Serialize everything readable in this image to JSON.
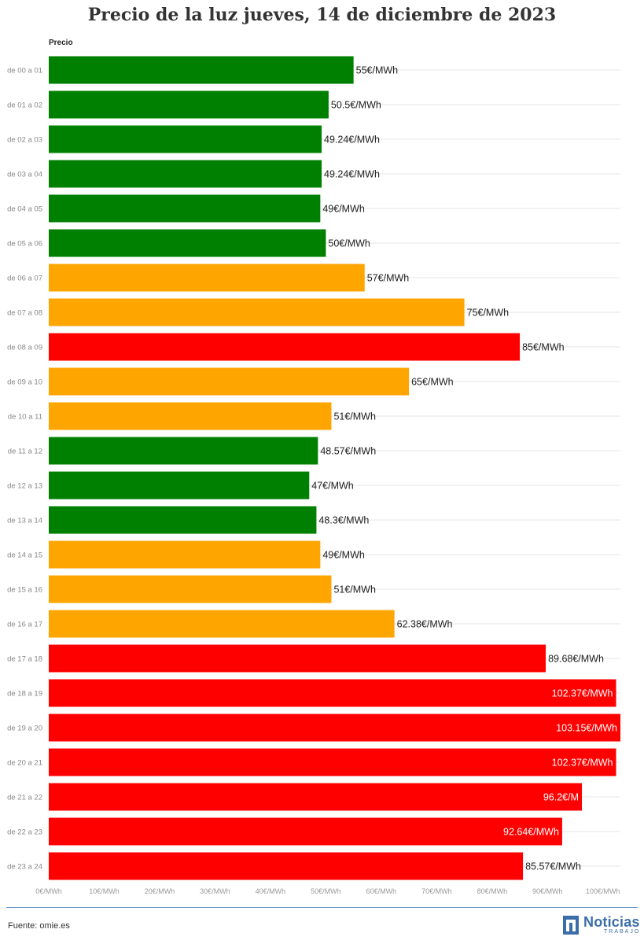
{
  "chart_data": {
    "type": "bar",
    "orientation": "horizontal",
    "title": "Precio de la luz jueves, 14 de diciembre de 2023",
    "ylabel": "Precio",
    "categories": [
      "de 00 a 01",
      "de 01 a 02",
      "de 02 a 03",
      "de 03 a 04",
      "de 04 a 05",
      "de 05 a 06",
      "de 06 a 07",
      "de 07 a 08",
      "de 08 a 09",
      "de 09 a 10",
      "de 10 a 11",
      "de 11 a 12",
      "de 12 a 13",
      "de 13 a 14",
      "de 14 a 15",
      "de 15 a 16",
      "de 16 a 17",
      "de 17 a 18",
      "de 18 a 19",
      "de 19 a 20",
      "de 20 a 21",
      "de 21 a 22",
      "de 22 a 23",
      "de 23 a 24"
    ],
    "values": [
      55,
      50.5,
      49.24,
      49.24,
      49,
      50,
      57,
      75,
      85,
      65,
      51,
      48.57,
      47,
      48.3,
      49,
      51,
      62.38,
      89.68,
      102.37,
      103.15,
      102.37,
      96.2,
      92.64,
      85.57
    ],
    "value_labels": [
      "55€/MWh",
      "50.5€/MWh",
      "49.24€/MWh",
      "49.24€/MWh",
      "49€/MWh",
      "50€/MWh",
      "57€/MWh",
      "75€/MWh",
      "85€/MWh",
      "65€/MWh",
      "51€/MWh",
      "48.57€/MWh",
      "47€/MWh",
      "48.3€/MWh",
      "49€/MWh",
      "51€/MWh",
      "62.38€/MWh",
      "89.68€/MWh",
      "102.37€/MWh",
      "103.15€/MWh",
      "102.37€/MWh",
      "96.2€/M",
      "92.64€/MWh",
      "85.57€/MWh"
    ],
    "levels": [
      "low",
      "low",
      "low",
      "low",
      "low",
      "low",
      "mid",
      "mid",
      "high",
      "mid",
      "mid",
      "low",
      "low",
      "low",
      "mid",
      "mid",
      "mid",
      "high",
      "high",
      "high",
      "high",
      "high",
      "high",
      "high"
    ],
    "level_colors": {
      "low": "#008000",
      "mid": "#FFA500",
      "high": "#FF0000"
    },
    "xlim": [
      0,
      103.15
    ],
    "x_ticks": [
      0,
      10,
      20,
      30,
      40,
      50,
      60,
      70,
      80,
      90,
      100
    ],
    "x_tick_labels": [
      "0€/MWh",
      "10€/MWh",
      "20€/MWh",
      "30€/MWh",
      "40€/MWh",
      "50€/MWh",
      "60€/MWh",
      "70€/MWh",
      "80€/MWh",
      "90€/MWh",
      "100€/MWh"
    ],
    "grid": true
  },
  "footer": {
    "source": "Fuente: omie.es",
    "logo_name": "Noticias",
    "logo_sub": "TRABAJO"
  }
}
